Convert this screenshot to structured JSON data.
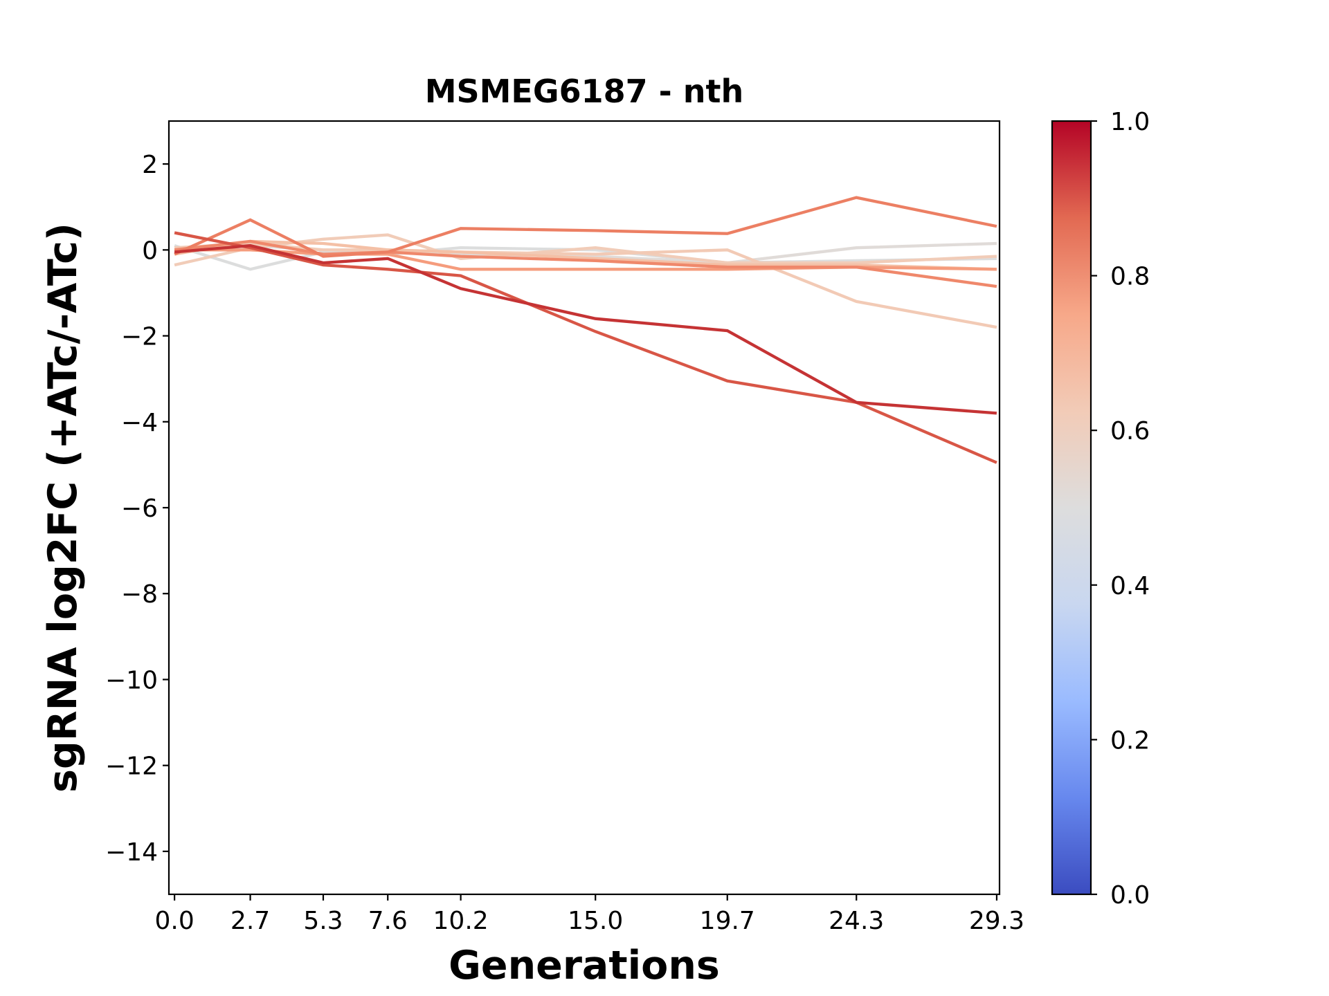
{
  "chart_data": {
    "type": "line",
    "title": "MSMEG6187 - nth",
    "xlabel": "Generations",
    "ylabel": "sgRNA log2FC (+ATc/-ATc)",
    "x": [
      0.0,
      2.7,
      5.3,
      7.6,
      10.2,
      15.0,
      19.7,
      24.3,
      29.3
    ],
    "x_tick_labels": [
      "0.0",
      "2.7",
      "5.3",
      "7.6",
      "10.2",
      "15.0",
      "19.7",
      "24.3",
      "29.3"
    ],
    "xlim": [
      -0.2,
      29.4
    ],
    "ylim": [
      -15,
      3
    ],
    "y_ticks": [
      2,
      0,
      -2,
      -4,
      -6,
      -8,
      -10,
      -12,
      -14
    ],
    "y_tick_labels": [
      "2",
      "0",
      "−2",
      "−4",
      "−6",
      "−8",
      "−10",
      "−12",
      "−14"
    ],
    "grid": false,
    "colorbar": {
      "colormap": "coolwarm",
      "range": [
        0.0,
        1.0
      ],
      "ticks": [
        1.0,
        0.8,
        0.6,
        0.4,
        0.2,
        0.0
      ],
      "tick_labels": [
        "1.0",
        "0.8",
        "0.6",
        "0.4",
        "0.2",
        "0.0"
      ],
      "gradient_colors": [
        "#3b4cc0",
        "#6788ee",
        "#9abbff",
        "#c9d7f0",
        "#dddddd",
        "#f2cbb7",
        "#f7a889",
        "#e26952",
        "#b40426"
      ]
    },
    "series": [
      {
        "color": "#dcdddd",
        "values": [
          0.1,
          -0.45,
          -0.05,
          -0.1,
          0.05,
          0.0,
          -0.3,
          -0.25,
          -0.2
        ]
      },
      {
        "color": "#e0dbd8",
        "values": [
          -0.05,
          0.1,
          0.0,
          -0.05,
          -0.1,
          -0.15,
          -0.3,
          0.05,
          0.15
        ]
      },
      {
        "color": "#f1ccb8",
        "values": [
          -0.35,
          0.05,
          0.25,
          0.35,
          -0.2,
          0.05,
          -0.3,
          -0.3,
          -0.15
        ]
      },
      {
        "color": "#f2cab5",
        "values": [
          0.05,
          0.15,
          0.0,
          0.0,
          -0.05,
          -0.1,
          0.0,
          -1.2,
          -1.8
        ]
      },
      {
        "color": "#f4c0a6",
        "values": [
          -0.1,
          0.2,
          0.15,
          0.0,
          -0.05,
          -0.2,
          -0.35,
          -0.35,
          -0.45
        ]
      },
      {
        "color": "#f59c7d",
        "values": [
          0.0,
          0.0,
          -0.1,
          -0.1,
          -0.45,
          -0.45,
          -0.45,
          -0.4,
          -0.45
        ]
      },
      {
        "color": "#ef886b",
        "values": [
          0.0,
          0.2,
          -0.1,
          -0.05,
          -0.15,
          -0.25,
          -0.4,
          -0.4,
          -0.85
        ]
      },
      {
        "color": "#ec7f63",
        "values": [
          -0.1,
          0.7,
          -0.15,
          -0.05,
          0.5,
          0.45,
          0.38,
          1.22,
          0.55
        ]
      },
      {
        "color": "#d85646",
        "values": [
          0.4,
          0.05,
          -0.35,
          -0.45,
          -0.6,
          -1.9,
          -3.05,
          -3.55,
          -4.95
        ]
      },
      {
        "color": "#c53334",
        "values": [
          -0.05,
          0.1,
          -0.3,
          -0.2,
          -0.9,
          -1.6,
          -1.88,
          -3.55,
          -3.8
        ]
      }
    ]
  }
}
